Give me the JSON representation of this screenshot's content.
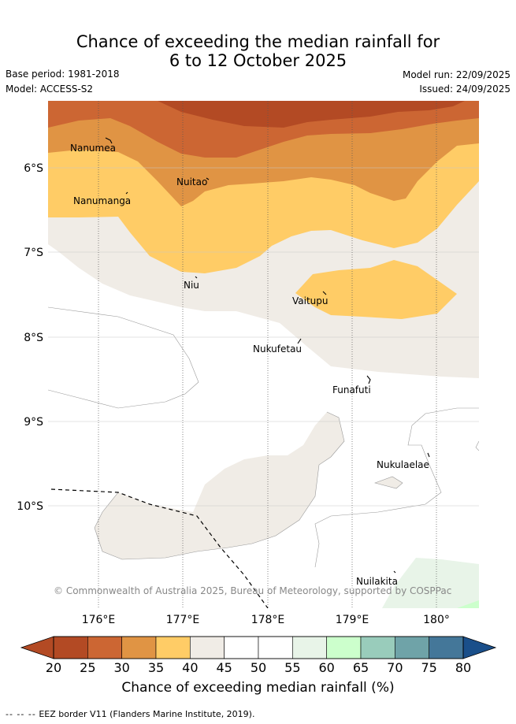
{
  "header": {
    "title_line1": "Chance of exceeding the median rainfall for",
    "title_line2": "6 to 12 October 2025",
    "base_period": "Base period: 1981-2018",
    "model": "Model: ACCESS-S2",
    "model_run": "Model run: 22/09/2025",
    "issued": "Issued: 24/09/2025"
  },
  "map": {
    "lat_labels": [
      "6°S",
      "7°S",
      "8°S",
      "9°S",
      "10°S"
    ],
    "lon_labels": [
      "176°E",
      "177°E",
      "178°E",
      "179°E",
      "180°"
    ],
    "places": [
      "Nanumea",
      "Nuitao",
      "Nanumanga",
      "Niu",
      "Vaitupu",
      "Nukufetau",
      "Funafuti",
      "Nukulaelae",
      "Nuilakita"
    ],
    "copyright": "© Commonwealth of Australia 2025, Bureau of Meteorology, supported by COSPPac"
  },
  "colorbar": {
    "ticks": [
      "20",
      "25",
      "30",
      "35",
      "40",
      "45",
      "50",
      "55",
      "60",
      "65",
      "70",
      "75",
      "80"
    ],
    "colors": [
      "#b34a24",
      "#cc6633",
      "#e09444",
      "#ffcc66",
      "#f0ece6",
      "#ffffff",
      "#ffffff",
      "#e8f4e8",
      "#ccffcc",
      "#99ccbb",
      "#6fa3a8",
      "#447799"
    ],
    "low_extend_color": "#b34a24",
    "high_extend_color": "#1a4f8a",
    "label": "Chance of exceeding median rainfall (%)"
  },
  "footer": {
    "dash": "-- -- --",
    "eez_label": "EEZ border V11 (Flanders Marine Institute, 2019)."
  }
}
